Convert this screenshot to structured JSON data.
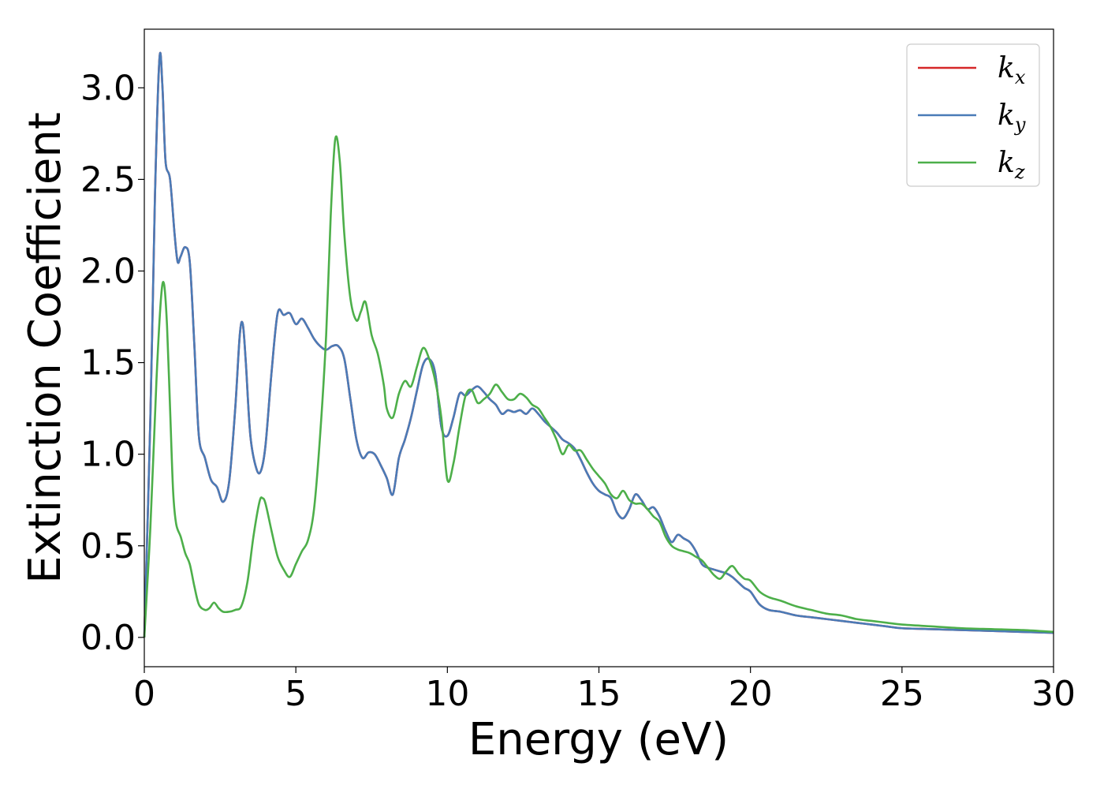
{
  "chart_data": {
    "type": "line",
    "xlabel": "Energy (eV)",
    "ylabel": "Extinction Coefficient",
    "xlim": [
      0,
      30
    ],
    "ylim": [
      -0.16,
      3.32
    ],
    "xticks": [
      0,
      5,
      10,
      15,
      20,
      25,
      30
    ],
    "xtick_labels": [
      "0",
      "5",
      "10",
      "15",
      "20",
      "25",
      "30"
    ],
    "yticks": [
      0.0,
      0.5,
      1.0,
      1.5,
      2.0,
      2.5,
      3.0
    ],
    "ytick_labels": [
      "0.0",
      "0.5",
      "1.0",
      "1.5",
      "2.0",
      "2.5",
      "3.0"
    ],
    "grid": false,
    "legend_position": "top-right",
    "series": [
      {
        "name": "k",
        "subscript": "x",
        "color": "#d62728",
        "x": [
          0,
          0.2,
          0.35,
          0.5,
          0.6,
          0.7,
          0.85,
          1.0,
          1.1,
          1.2,
          1.35,
          1.5,
          1.65,
          1.8,
          2.0,
          2.2,
          2.4,
          2.6,
          2.8,
          3.0,
          3.15,
          3.25,
          3.35,
          3.5,
          3.7,
          3.85,
          4.0,
          4.2,
          4.4,
          4.6,
          4.8,
          5.0,
          5.2,
          5.4,
          5.6,
          5.8,
          6.0,
          6.2,
          6.4,
          6.6,
          6.8,
          7.0,
          7.2,
          7.4,
          7.6,
          7.8,
          8.0,
          8.2,
          8.4,
          8.6,
          8.8,
          9.0,
          9.2,
          9.4,
          9.6,
          9.8,
          10.0,
          10.2,
          10.4,
          10.6,
          10.8,
          11.0,
          11.2,
          11.4,
          11.6,
          11.8,
          12.0,
          12.2,
          12.4,
          12.6,
          12.8,
          13.0,
          13.2,
          13.4,
          13.6,
          13.8,
          14.0,
          14.2,
          14.4,
          14.6,
          14.8,
          15.0,
          15.2,
          15.4,
          15.6,
          15.8,
          16.0,
          16.2,
          16.4,
          16.6,
          16.8,
          17.0,
          17.2,
          17.4,
          17.6,
          17.8,
          18.0,
          18.2,
          18.4,
          18.6,
          18.8,
          19.0,
          19.2,
          19.4,
          19.6,
          19.8,
          20.0,
          20.3,
          20.6,
          21.0,
          21.5,
          22.0,
          22.5,
          23.0,
          23.5,
          24.0,
          24.5,
          25.0,
          26.0,
          27.0,
          28.0,
          29.0,
          30.0
        ],
        "y": [
          0.0,
          1.2,
          2.4,
          3.16,
          3.0,
          2.6,
          2.5,
          2.2,
          2.05,
          2.08,
          2.13,
          2.05,
          1.6,
          1.1,
          0.98,
          0.86,
          0.82,
          0.74,
          0.85,
          1.25,
          1.65,
          1.71,
          1.5,
          1.1,
          0.92,
          0.91,
          1.05,
          1.45,
          1.77,
          1.76,
          1.77,
          1.71,
          1.74,
          1.69,
          1.63,
          1.59,
          1.57,
          1.59,
          1.59,
          1.52,
          1.3,
          1.08,
          0.98,
          1.01,
          1.0,
          0.94,
          0.87,
          0.78,
          0.98,
          1.08,
          1.2,
          1.35,
          1.49,
          1.52,
          1.44,
          1.15,
          1.1,
          1.2,
          1.33,
          1.32,
          1.35,
          1.37,
          1.34,
          1.3,
          1.27,
          1.22,
          1.24,
          1.23,
          1.24,
          1.22,
          1.25,
          1.22,
          1.18,
          1.15,
          1.12,
          1.08,
          1.06,
          1.03,
          0.97,
          0.9,
          0.84,
          0.8,
          0.78,
          0.76,
          0.68,
          0.65,
          0.7,
          0.78,
          0.75,
          0.7,
          0.71,
          0.66,
          0.58,
          0.52,
          0.56,
          0.54,
          0.52,
          0.47,
          0.4,
          0.38,
          0.37,
          0.36,
          0.35,
          0.33,
          0.3,
          0.27,
          0.25,
          0.18,
          0.15,
          0.14,
          0.12,
          0.11,
          0.1,
          0.09,
          0.08,
          0.07,
          0.06,
          0.05,
          0.045,
          0.04,
          0.035,
          0.03,
          0.025
        ]
      },
      {
        "name": "k",
        "subscript": "y",
        "color": "#4a7bb7",
        "x": [
          0,
          0.2,
          0.35,
          0.5,
          0.6,
          0.7,
          0.85,
          1.0,
          1.1,
          1.2,
          1.35,
          1.5,
          1.65,
          1.8,
          2.0,
          2.2,
          2.4,
          2.6,
          2.8,
          3.0,
          3.15,
          3.25,
          3.35,
          3.5,
          3.7,
          3.85,
          4.0,
          4.2,
          4.4,
          4.6,
          4.8,
          5.0,
          5.2,
          5.4,
          5.6,
          5.8,
          6.0,
          6.2,
          6.4,
          6.6,
          6.8,
          7.0,
          7.2,
          7.4,
          7.6,
          7.8,
          8.0,
          8.2,
          8.4,
          8.6,
          8.8,
          9.0,
          9.2,
          9.4,
          9.6,
          9.8,
          10.0,
          10.2,
          10.4,
          10.6,
          10.8,
          11.0,
          11.2,
          11.4,
          11.6,
          11.8,
          12.0,
          12.2,
          12.4,
          12.6,
          12.8,
          13.0,
          13.2,
          13.4,
          13.6,
          13.8,
          14.0,
          14.2,
          14.4,
          14.6,
          14.8,
          15.0,
          15.2,
          15.4,
          15.6,
          15.8,
          16.0,
          16.2,
          16.4,
          16.6,
          16.8,
          17.0,
          17.2,
          17.4,
          17.6,
          17.8,
          18.0,
          18.2,
          18.4,
          18.6,
          18.8,
          19.0,
          19.2,
          19.4,
          19.6,
          19.8,
          20.0,
          20.3,
          20.6,
          21.0,
          21.5,
          22.0,
          22.5,
          23.0,
          23.5,
          24.0,
          24.5,
          25.0,
          26.0,
          27.0,
          28.0,
          29.0,
          30.0
        ],
        "y": [
          0.0,
          1.2,
          2.4,
          3.16,
          3.0,
          2.6,
          2.5,
          2.2,
          2.05,
          2.08,
          2.13,
          2.05,
          1.6,
          1.1,
          0.98,
          0.86,
          0.82,
          0.74,
          0.85,
          1.25,
          1.65,
          1.71,
          1.5,
          1.1,
          0.92,
          0.91,
          1.05,
          1.45,
          1.77,
          1.76,
          1.77,
          1.71,
          1.74,
          1.69,
          1.63,
          1.59,
          1.57,
          1.59,
          1.59,
          1.52,
          1.3,
          1.08,
          0.98,
          1.01,
          1.0,
          0.94,
          0.87,
          0.78,
          0.98,
          1.08,
          1.2,
          1.35,
          1.49,
          1.52,
          1.44,
          1.15,
          1.1,
          1.2,
          1.33,
          1.32,
          1.35,
          1.37,
          1.34,
          1.3,
          1.27,
          1.22,
          1.24,
          1.23,
          1.24,
          1.22,
          1.25,
          1.22,
          1.18,
          1.15,
          1.12,
          1.08,
          1.06,
          1.03,
          0.97,
          0.9,
          0.84,
          0.8,
          0.78,
          0.76,
          0.68,
          0.65,
          0.7,
          0.78,
          0.75,
          0.7,
          0.71,
          0.66,
          0.58,
          0.52,
          0.56,
          0.54,
          0.52,
          0.47,
          0.4,
          0.38,
          0.37,
          0.36,
          0.35,
          0.33,
          0.3,
          0.27,
          0.25,
          0.18,
          0.15,
          0.14,
          0.12,
          0.11,
          0.1,
          0.09,
          0.08,
          0.07,
          0.06,
          0.05,
          0.045,
          0.04,
          0.035,
          0.03,
          0.025
        ]
      },
      {
        "name": "k",
        "subscript": "z",
        "color": "#4daf4a",
        "x": [
          0,
          0.2,
          0.4,
          0.55,
          0.65,
          0.75,
          0.85,
          0.95,
          1.05,
          1.2,
          1.35,
          1.5,
          1.65,
          1.8,
          2.0,
          2.15,
          2.3,
          2.45,
          2.6,
          2.8,
          3.0,
          3.2,
          3.4,
          3.6,
          3.8,
          3.9,
          4.0,
          4.2,
          4.4,
          4.6,
          4.8,
          5.0,
          5.2,
          5.4,
          5.6,
          5.8,
          6.0,
          6.15,
          6.3,
          6.45,
          6.6,
          6.8,
          7.0,
          7.15,
          7.3,
          7.5,
          7.7,
          7.9,
          8.0,
          8.2,
          8.4,
          8.6,
          8.8,
          9.0,
          9.2,
          9.4,
          9.6,
          9.8,
          10.0,
          10.2,
          10.4,
          10.6,
          10.8,
          11.0,
          11.2,
          11.4,
          11.6,
          11.8,
          12.0,
          12.2,
          12.4,
          12.6,
          12.8,
          13.0,
          13.2,
          13.4,
          13.6,
          13.8,
          14.0,
          14.2,
          14.4,
          14.6,
          14.8,
          15.0,
          15.2,
          15.4,
          15.6,
          15.8,
          16.0,
          16.2,
          16.4,
          16.6,
          16.8,
          17.0,
          17.2,
          17.4,
          17.6,
          17.8,
          18.0,
          18.2,
          18.4,
          18.6,
          18.8,
          19.0,
          19.2,
          19.4,
          19.6,
          19.8,
          20.0,
          20.3,
          20.6,
          21.0,
          21.5,
          22.0,
          22.5,
          23.0,
          23.5,
          24.0,
          24.5,
          25.0,
          26.0,
          27.0,
          28.0,
          29.0,
          30.0
        ],
        "y": [
          0.0,
          0.6,
          1.4,
          1.85,
          1.93,
          1.7,
          1.25,
          0.8,
          0.62,
          0.55,
          0.46,
          0.4,
          0.28,
          0.18,
          0.15,
          0.16,
          0.19,
          0.16,
          0.14,
          0.14,
          0.15,
          0.17,
          0.3,
          0.55,
          0.74,
          0.76,
          0.73,
          0.58,
          0.44,
          0.37,
          0.33,
          0.4,
          0.47,
          0.53,
          0.7,
          1.1,
          1.65,
          2.3,
          2.72,
          2.6,
          2.2,
          1.85,
          1.73,
          1.78,
          1.83,
          1.65,
          1.55,
          1.38,
          1.25,
          1.2,
          1.33,
          1.4,
          1.37,
          1.48,
          1.58,
          1.52,
          1.4,
          1.2,
          0.86,
          0.95,
          1.15,
          1.32,
          1.35,
          1.28,
          1.3,
          1.33,
          1.38,
          1.34,
          1.3,
          1.3,
          1.33,
          1.31,
          1.27,
          1.25,
          1.2,
          1.15,
          1.08,
          1.0,
          1.05,
          1.02,
          1.02,
          0.97,
          0.92,
          0.88,
          0.84,
          0.78,
          0.76,
          0.8,
          0.75,
          0.73,
          0.73,
          0.7,
          0.66,
          0.63,
          0.55,
          0.5,
          0.48,
          0.47,
          0.46,
          0.44,
          0.42,
          0.38,
          0.34,
          0.32,
          0.36,
          0.39,
          0.35,
          0.32,
          0.31,
          0.25,
          0.22,
          0.2,
          0.17,
          0.15,
          0.13,
          0.12,
          0.1,
          0.09,
          0.08,
          0.07,
          0.06,
          0.05,
          0.045,
          0.04,
          0.03
        ]
      }
    ]
  }
}
